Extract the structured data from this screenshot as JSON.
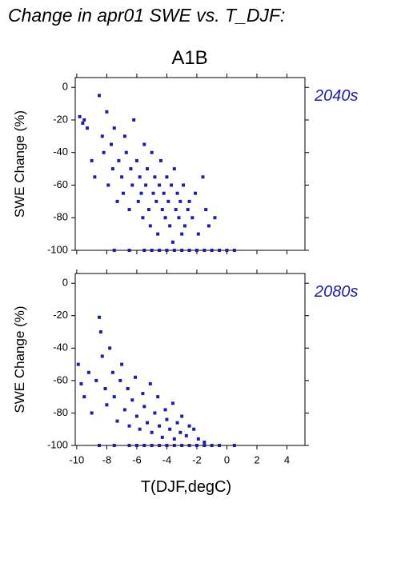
{
  "title": "Change in apr01 SWE vs. T_DJF:",
  "subtitle": "A1B",
  "chart_data": [
    {
      "type": "scatter",
      "label": "2040s",
      "ylabel": "SWE Change (%)",
      "color": "#1c1cb4",
      "xlim": [
        -10.1,
        5.2
      ],
      "ylim": [
        -100,
        6
      ],
      "xticks": [
        -10,
        -8,
        -6,
        -4,
        -2,
        0,
        2,
        4
      ],
      "yticks": [
        0,
        -20,
        -40,
        -60,
        -80,
        -100
      ],
      "x": [
        -9.8,
        -9.6,
        -9.5,
        -9.3,
        -9.0,
        -8.8,
        -8.5,
        -8.3,
        -8.2,
        -8.0,
        -7.9,
        -7.7,
        -7.6,
        -7.5,
        -7.3,
        -7.2,
        -7.0,
        -6.9,
        -6.8,
        -6.7,
        -6.5,
        -6.4,
        -6.3,
        -6.2,
        -6.0,
        -5.9,
        -5.8,
        -5.7,
        -5.6,
        -5.5,
        -5.4,
        -5.3,
        -5.2,
        -5.1,
        -5.0,
        -4.9,
        -4.8,
        -4.7,
        -4.6,
        -4.5,
        -4.4,
        -4.3,
        -4.2,
        -4.1,
        -4.0,
        -3.9,
        -3.8,
        -3.7,
        -3.6,
        -3.5,
        -3.4,
        -3.3,
        -3.2,
        -3.1,
        -3.0,
        -2.9,
        -2.8,
        -2.6,
        -2.5,
        -2.3,
        -2.1,
        -1.9,
        -1.6,
        -1.4,
        -1.2,
        -0.8,
        -7.5,
        -6.5,
        -5.5,
        -5,
        -4.5,
        -4,
        -3.5,
        -3,
        -2.5,
        -2,
        -1.5,
        -1,
        -0.5,
        0,
        0.5
      ],
      "values": [
        -18,
        -22,
        -20,
        -25,
        -45,
        -55,
        -5,
        -30,
        -40,
        -15,
        -60,
        -35,
        -50,
        -25,
        -70,
        -45,
        -55,
        -65,
        -30,
        -40,
        -75,
        -50,
        -60,
        -20,
        -45,
        -70,
        -55,
        -65,
        -80,
        -35,
        -60,
        -50,
        -75,
        -85,
        -40,
        -65,
        -55,
        -70,
        -90,
        -60,
        -45,
        -75,
        -65,
        -80,
        -55,
        -70,
        -85,
        -60,
        -95,
        -50,
        -75,
        -65,
        -80,
        -70,
        -90,
        -60,
        -85,
        -75,
        -70,
        -80,
        -65,
        -90,
        -55,
        -75,
        -85,
        -80,
        -100,
        -100,
        -100,
        -100,
        -100,
        -100,
        -100,
        -100,
        -100,
        -100,
        -100,
        -100,
        -100,
        -100,
        -100
      ]
    },
    {
      "type": "scatter",
      "label": "2080s",
      "ylabel": "SWE Change (%)",
      "xlabel": "T(DJF,degC)",
      "color": "#1c1cb4",
      "xlim": [
        -10.1,
        5.2
      ],
      "ylim": [
        -100,
        6
      ],
      "xticks": [
        -10,
        -8,
        -6,
        -4,
        -2,
        0,
        2,
        4
      ],
      "yticks": [
        0,
        -20,
        -40,
        -60,
        -80,
        -100
      ],
      "x": [
        -9.9,
        -9.7,
        -9.5,
        -9.2,
        -9.0,
        -8.7,
        -8.5,
        -8.4,
        -8.3,
        -8.1,
        -8.0,
        -7.8,
        -7.6,
        -7.5,
        -7.3,
        -7.1,
        -7.0,
        -6.8,
        -6.6,
        -6.5,
        -6.3,
        -6.1,
        -6.0,
        -5.8,
        -5.6,
        -5.5,
        -5.3,
        -5.1,
        -5.0,
        -4.8,
        -4.6,
        -4.5,
        -4.3,
        -4.1,
        -4.0,
        -3.8,
        -3.6,
        -3.5,
        -3.3,
        -3.1,
        -3.0,
        -2.7,
        -2.5,
        -2.2,
        -1.9,
        -1.5,
        -8.5,
        -7.5,
        -6.5,
        -6,
        -5.5,
        -5,
        -4.5,
        -4,
        -3.5,
        -3,
        -2.5,
        -2,
        -1.5,
        -1,
        -0.5,
        0.5
      ],
      "values": [
        -50,
        -62,
        -70,
        -55,
        -80,
        -60,
        -21,
        -30,
        -45,
        -65,
        -75,
        -40,
        -55,
        -70,
        -85,
        -60,
        -50,
        -78,
        -65,
        -88,
        -72,
        -58,
        -82,
        -90,
        -68,
        -76,
        -86,
        -62,
        -92,
        -80,
        -70,
        -88,
        -95,
        -78,
        -84,
        -90,
        -74,
        -96,
        -86,
        -92,
        -82,
        -94,
        -88,
        -90,
        -96,
        -98,
        -100,
        -100,
        -100,
        -100,
        -100,
        -100,
        -100,
        -100,
        -100,
        -100,
        -100,
        -100,
        -100,
        -100,
        -100,
        -100
      ]
    }
  ]
}
